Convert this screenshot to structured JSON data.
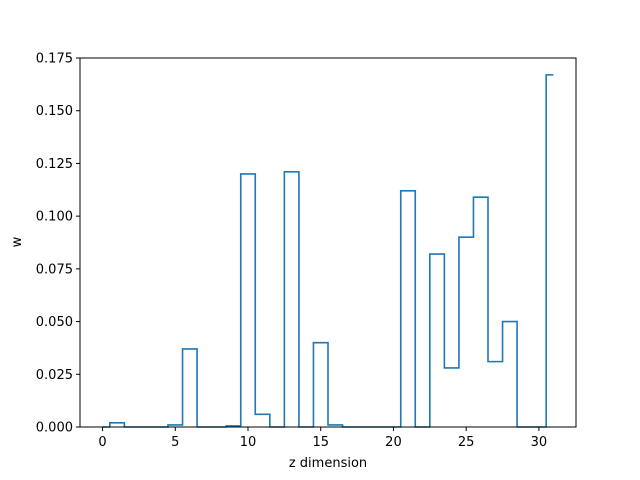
{
  "chart_data": {
    "type": "line",
    "style": "step-histogram",
    "title": "",
    "xlabel": "z dimension",
    "ylabel": "w",
    "xlim": [
      -1.55,
      32.55
    ],
    "ylim": [
      0,
      0.175
    ],
    "x_ticks": [
      0,
      5,
      10,
      15,
      20,
      25,
      30
    ],
    "x_tick_labels": [
      "0",
      "5",
      "10",
      "15",
      "20",
      "25",
      "30"
    ],
    "y_ticks": [
      0,
      0.025,
      0.05,
      0.075,
      0.1,
      0.125,
      0.15,
      0.175
    ],
    "y_tick_labels": [
      "0.000",
      "0.025",
      "0.050",
      "0.075",
      "0.100",
      "0.125",
      "0.150",
      "0.175"
    ],
    "grid": false,
    "series": [
      {
        "color": "#1f77b4",
        "x": [
          0,
          1,
          2,
          3,
          4,
          5,
          6,
          7,
          8,
          9,
          10,
          11,
          12,
          13,
          14,
          15,
          16,
          17,
          18,
          19,
          20,
          21,
          22,
          23,
          24,
          25,
          26,
          27,
          28,
          29,
          30,
          31
        ],
        "values": [
          0,
          0.002,
          0,
          0,
          0,
          0.001,
          0.037,
          0,
          0,
          0.0005,
          0.12,
          0.006,
          0,
          0.121,
          0,
          0.04,
          0.001,
          0,
          0,
          0,
          0,
          0.112,
          0,
          0.082,
          0.028,
          0.09,
          0.109,
          0.031,
          0.05,
          0,
          0,
          0.167
        ]
      }
    ]
  }
}
